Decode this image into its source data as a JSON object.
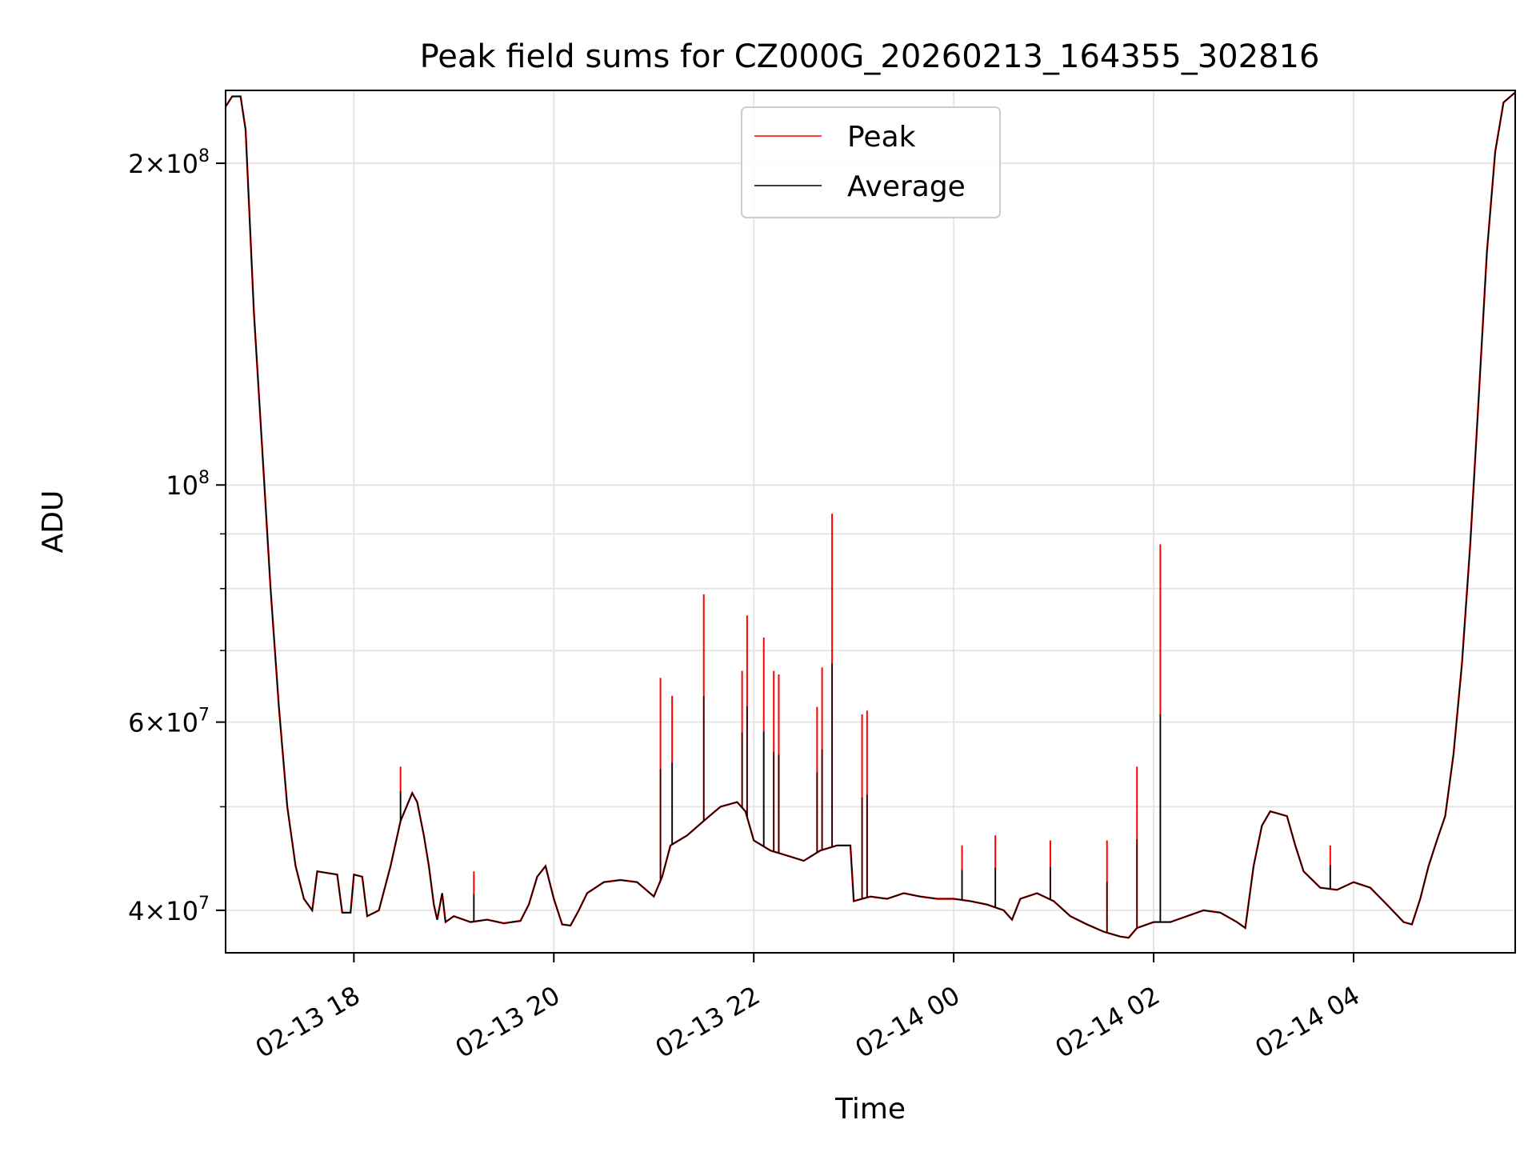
{
  "chart_data": {
    "type": "line",
    "title": "Peak field sums for CZ000G_20260213_164355_302816",
    "xlabel": "Time",
    "ylabel": "ADU",
    "y_scale": "log",
    "ylim": [
      36500000,
      234000000
    ],
    "xlim": [
      "2026-02-13 16:43",
      "2026-02-14 05:37"
    ],
    "grid": true,
    "legend_position": "upper center",
    "x_ticks": [
      {
        "value": "2026-02-13 18:00",
        "label": "02-13 18"
      },
      {
        "value": "2026-02-13 20:00",
        "label": "02-13 20"
      },
      {
        "value": "2026-02-13 22:00",
        "label": "02-13 22"
      },
      {
        "value": "2026-02-14 00:00",
        "label": "02-14 00"
      },
      {
        "value": "2026-02-14 02:00",
        "label": "02-14 02"
      },
      {
        "value": "2026-02-14 04:00",
        "label": "02-14 04"
      }
    ],
    "y_ticks": [
      {
        "value": 40000000,
        "base": "4",
        "exp": "7"
      },
      {
        "value": 60000000,
        "base": "6",
        "exp": "7"
      },
      {
        "value": 100000000,
        "base": "",
        "exp": "8"
      },
      {
        "value": 200000000,
        "base": "2",
        "exp": "8"
      }
    ],
    "y_minor_ticks": [
      50000000,
      70000000,
      80000000,
      90000000
    ],
    "series": [
      {
        "name": "Average",
        "color": "#000000",
        "points": [
          [
            "2026-02-13 16:43",
            226000000
          ],
          [
            "2026-02-13 16:47",
            231000000
          ],
          [
            "2026-02-13 16:52",
            231000000
          ],
          [
            "2026-02-13 16:55",
            215000000
          ],
          [
            "2026-02-13 17:00",
            145000000
          ],
          [
            "2026-02-13 17:05",
            108000000
          ],
          [
            "2026-02-13 17:10",
            80000000
          ],
          [
            "2026-02-13 17:15",
            62000000
          ],
          [
            "2026-02-13 17:20",
            50000000
          ],
          [
            "2026-02-13 17:25",
            44000000
          ],
          [
            "2026-02-13 17:30",
            41000000
          ],
          [
            "2026-02-13 17:35",
            40000000
          ],
          [
            "2026-02-13 17:38",
            43500000
          ],
          [
            "2026-02-13 17:50",
            43200000
          ],
          [
            "2026-02-13 17:53",
            39800000
          ],
          [
            "2026-02-13 17:58",
            39800000
          ],
          [
            "2026-02-13 18:00",
            43200000
          ],
          [
            "2026-02-13 18:05",
            43000000
          ],
          [
            "2026-02-13 18:08",
            39500000
          ],
          [
            "2026-02-13 18:15",
            40000000
          ],
          [
            "2026-02-13 18:22",
            44000000
          ],
          [
            "2026-02-13 18:28",
            48500000
          ],
          [
            "2026-02-13 18:35",
            51500000
          ],
          [
            "2026-02-13 18:38",
            50500000
          ],
          [
            "2026-02-13 18:42",
            47000000
          ],
          [
            "2026-02-13 18:45",
            44000000
          ],
          [
            "2026-02-13 18:48",
            40500000
          ],
          [
            "2026-02-13 18:50",
            39200000
          ],
          [
            "2026-02-13 18:53",
            41500000
          ],
          [
            "2026-02-13 18:55",
            39000000
          ],
          [
            "2026-02-13 19:00",
            39500000
          ],
          [
            "2026-02-13 19:10",
            39000000
          ],
          [
            "2026-02-13 19:20",
            39200000
          ],
          [
            "2026-02-13 19:30",
            38900000
          ],
          [
            "2026-02-13 19:40",
            39100000
          ],
          [
            "2026-02-13 19:45",
            40500000
          ],
          [
            "2026-02-13 19:50",
            43000000
          ],
          [
            "2026-02-13 19:55",
            44000000
          ],
          [
            "2026-02-13 20:00",
            41000000
          ],
          [
            "2026-02-13 20:05",
            38800000
          ],
          [
            "2026-02-13 20:10",
            38700000
          ],
          [
            "2026-02-13 20:15",
            40000000
          ],
          [
            "2026-02-13 20:20",
            41500000
          ],
          [
            "2026-02-13 20:30",
            42500000
          ],
          [
            "2026-02-13 20:40",
            42700000
          ],
          [
            "2026-02-13 20:50",
            42500000
          ],
          [
            "2026-02-13 21:00",
            41200000
          ],
          [
            "2026-02-13 21:05",
            43000000
          ],
          [
            "2026-02-13 21:10",
            46000000
          ],
          [
            "2026-02-13 21:20",
            47000000
          ],
          [
            "2026-02-13 21:30",
            48500000
          ],
          [
            "2026-02-13 21:40",
            50000000
          ],
          [
            "2026-02-13 21:50",
            50500000
          ],
          [
            "2026-02-13 21:55",
            49500000
          ],
          [
            "2026-02-13 22:00",
            46500000
          ],
          [
            "2026-02-13 22:10",
            45500000
          ],
          [
            "2026-02-13 22:20",
            45000000
          ],
          [
            "2026-02-13 22:30",
            44500000
          ],
          [
            "2026-02-13 22:40",
            45500000
          ],
          [
            "2026-02-13 22:50",
            46000000
          ],
          [
            "2026-02-13 22:58",
            46000000
          ],
          [
            "2026-02-13 23:00",
            40800000
          ],
          [
            "2026-02-13 23:10",
            41200000
          ],
          [
            "2026-02-13 23:20",
            41000000
          ],
          [
            "2026-02-13 23:30",
            41500000
          ],
          [
            "2026-02-13 23:40",
            41200000
          ],
          [
            "2026-02-13 23:50",
            41000000
          ],
          [
            "2026-02-14 00:00",
            41000000
          ],
          [
            "2026-02-14 00:10",
            40800000
          ],
          [
            "2026-02-14 00:20",
            40500000
          ],
          [
            "2026-02-14 00:30",
            40000000
          ],
          [
            "2026-02-14 00:35",
            39200000
          ],
          [
            "2026-02-14 00:40",
            41000000
          ],
          [
            "2026-02-14 00:50",
            41500000
          ],
          [
            "2026-02-14 01:00",
            40800000
          ],
          [
            "2026-02-14 01:10",
            39500000
          ],
          [
            "2026-02-14 01:20",
            38800000
          ],
          [
            "2026-02-14 01:30",
            38200000
          ],
          [
            "2026-02-14 01:40",
            37800000
          ],
          [
            "2026-02-14 01:45",
            37700000
          ],
          [
            "2026-02-14 01:50",
            38500000
          ],
          [
            "2026-02-14 02:00",
            39000000
          ],
          [
            "2026-02-14 02:10",
            39000000
          ],
          [
            "2026-02-14 02:20",
            39500000
          ],
          [
            "2026-02-14 02:30",
            40000000
          ],
          [
            "2026-02-14 02:40",
            39800000
          ],
          [
            "2026-02-14 02:50",
            39000000
          ],
          [
            "2026-02-14 02:55",
            38500000
          ],
          [
            "2026-02-14 03:00",
            44000000
          ],
          [
            "2026-02-14 03:05",
            48000000
          ],
          [
            "2026-02-14 03:10",
            49500000
          ],
          [
            "2026-02-14 03:20",
            49000000
          ],
          [
            "2026-02-14 03:25",
            46000000
          ],
          [
            "2026-02-14 03:30",
            43500000
          ],
          [
            "2026-02-14 03:40",
            42000000
          ],
          [
            "2026-02-14 03:50",
            41800000
          ],
          [
            "2026-02-14 04:00",
            42500000
          ],
          [
            "2026-02-14 04:10",
            42000000
          ],
          [
            "2026-02-14 04:20",
            40500000
          ],
          [
            "2026-02-14 04:30",
            39000000
          ],
          [
            "2026-02-14 04:35",
            38800000
          ],
          [
            "2026-02-14 04:40",
            41000000
          ],
          [
            "2026-02-14 04:45",
            44000000
          ],
          [
            "2026-02-14 04:50",
            46500000
          ],
          [
            "2026-02-14 04:55",
            49000000
          ],
          [
            "2026-02-14 05:00",
            56000000
          ],
          [
            "2026-02-14 05:05",
            68000000
          ],
          [
            "2026-02-14 05:10",
            88000000
          ],
          [
            "2026-02-14 05:15",
            120000000
          ],
          [
            "2026-02-14 05:20",
            165000000
          ],
          [
            "2026-02-14 05:25",
            205000000
          ],
          [
            "2026-02-14 05:30",
            228000000
          ],
          [
            "2026-02-14 05:37",
            233000000
          ]
        ]
      },
      {
        "name": "Peak",
        "color": "#ff0000",
        "spikes": [
          [
            "2026-02-13 18:28",
            54500000
          ],
          [
            "2026-02-13 19:12",
            43500000
          ],
          [
            "2026-02-13 21:04",
            66000000
          ],
          [
            "2026-02-13 21:11",
            63500000
          ],
          [
            "2026-02-13 21:30",
            79000000
          ],
          [
            "2026-02-13 21:53",
            67000000
          ],
          [
            "2026-02-13 21:56",
            75500000
          ],
          [
            "2026-02-13 22:06",
            72000000
          ],
          [
            "2026-02-13 22:12",
            67000000
          ],
          [
            "2026-02-13 22:15",
            66500000
          ],
          [
            "2026-02-13 22:38",
            62000000
          ],
          [
            "2026-02-13 22:41",
            67500000
          ],
          [
            "2026-02-13 22:47",
            94000000
          ],
          [
            "2026-02-13 23:05",
            61000000
          ],
          [
            "2026-02-13 23:08",
            61500000
          ],
          [
            "2026-02-14 00:05",
            46000000
          ],
          [
            "2026-02-14 00:25",
            47000000
          ],
          [
            "2026-02-14 00:58",
            46500000
          ],
          [
            "2026-02-14 01:32",
            46500000
          ],
          [
            "2026-02-14 01:50",
            54500000
          ],
          [
            "2026-02-14 02:04",
            88000000
          ],
          [
            "2026-02-14 03:46",
            46000000
          ]
        ]
      }
    ]
  }
}
